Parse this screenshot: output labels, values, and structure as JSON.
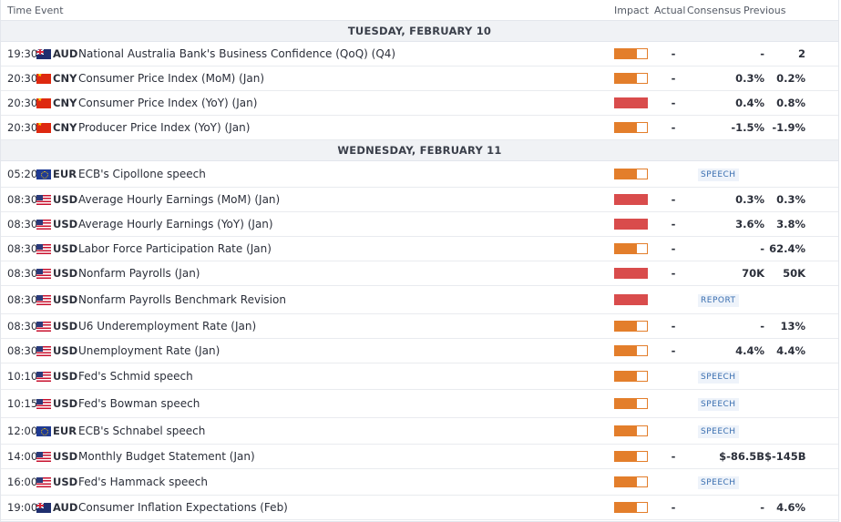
{
  "header": {
    "time": "Time",
    "event": "Event",
    "impact": "Impact",
    "actual": "Actual",
    "consensus": "Consensus",
    "previous": "Previous"
  },
  "colors": {
    "impact_medium": "#e37e2b",
    "impact_high": "#d94c4c",
    "tag_text": "#3a6fb0"
  },
  "days": [
    {
      "label": "TUESDAY, FEBRUARY 10",
      "events": [
        {
          "time": "19:30",
          "flag": "aud",
          "currency": "AUD",
          "event": "National Australia Bank's Business Confidence (QoQ) (Q4)",
          "impact": "medium",
          "actual": "-",
          "consensus": "-",
          "previous": "2",
          "tag": ""
        },
        {
          "time": "20:30",
          "flag": "cny",
          "currency": "CNY",
          "event": "Consumer Price Index (MoM) (Jan)",
          "impact": "medium",
          "actual": "-",
          "consensus": "0.3%",
          "previous": "0.2%",
          "tag": ""
        },
        {
          "time": "20:30",
          "flag": "cny",
          "currency": "CNY",
          "event": "Consumer Price Index (YoY) (Jan)",
          "impact": "high",
          "actual": "-",
          "consensus": "0.4%",
          "previous": "0.8%",
          "tag": ""
        },
        {
          "time": "20:30",
          "flag": "cny",
          "currency": "CNY",
          "event": "Producer Price Index (YoY) (Jan)",
          "impact": "medium",
          "actual": "-",
          "consensus": "-1.5%",
          "previous": "-1.9%",
          "tag": ""
        }
      ]
    },
    {
      "label": "WEDNESDAY, FEBRUARY 11",
      "events": [
        {
          "time": "05:20",
          "flag": "eur",
          "currency": "EUR",
          "event": "ECB's Cipollone speech",
          "impact": "medium",
          "actual": "",
          "consensus": "",
          "previous": "",
          "tag": "SPEECH"
        },
        {
          "time": "08:30",
          "flag": "usd",
          "currency": "USD",
          "event": "Average Hourly Earnings (MoM) (Jan)",
          "impact": "high",
          "actual": "-",
          "consensus": "0.3%",
          "previous": "0.3%",
          "tag": ""
        },
        {
          "time": "08:30",
          "flag": "usd",
          "currency": "USD",
          "event": "Average Hourly Earnings (YoY) (Jan)",
          "impact": "high",
          "actual": "-",
          "consensus": "3.6%",
          "previous": "3.8%",
          "tag": ""
        },
        {
          "time": "08:30",
          "flag": "usd",
          "currency": "USD",
          "event": "Labor Force Participation Rate (Jan)",
          "impact": "medium",
          "actual": "-",
          "consensus": "-",
          "previous": "62.4%",
          "tag": ""
        },
        {
          "time": "08:30",
          "flag": "usd",
          "currency": "USD",
          "event": "Nonfarm Payrolls (Jan)",
          "impact": "high",
          "actual": "-",
          "consensus": "70K",
          "previous": "50K",
          "tag": ""
        },
        {
          "time": "08:30",
          "flag": "usd",
          "currency": "USD",
          "event": "Nonfarm Payrolls Benchmark Revision",
          "impact": "high",
          "actual": "",
          "consensus": "",
          "previous": "",
          "tag": "REPORT"
        },
        {
          "time": "08:30",
          "flag": "usd",
          "currency": "USD",
          "event": "U6 Underemployment Rate (Jan)",
          "impact": "medium",
          "actual": "-",
          "consensus": "-",
          "previous": "13%",
          "tag": ""
        },
        {
          "time": "08:30",
          "flag": "usd",
          "currency": "USD",
          "event": "Unemployment Rate (Jan)",
          "impact": "medium",
          "actual": "-",
          "consensus": "4.4%",
          "previous": "4.4%",
          "tag": ""
        },
        {
          "time": "10:10",
          "flag": "usd",
          "currency": "USD",
          "event": "Fed's Schmid speech",
          "impact": "medium",
          "actual": "",
          "consensus": "",
          "previous": "",
          "tag": "SPEECH"
        },
        {
          "time": "10:15",
          "flag": "usd",
          "currency": "USD",
          "event": "Fed's Bowman speech",
          "impact": "medium",
          "actual": "",
          "consensus": "",
          "previous": "",
          "tag": "SPEECH"
        },
        {
          "time": "12:00",
          "flag": "eur",
          "currency": "EUR",
          "event": "ECB's Schnabel speech",
          "impact": "medium",
          "actual": "",
          "consensus": "",
          "previous": "",
          "tag": "SPEECH"
        },
        {
          "time": "14:00",
          "flag": "usd",
          "currency": "USD",
          "event": "Monthly Budget Statement (Jan)",
          "impact": "medium",
          "actual": "-",
          "consensus": "$-86.5B",
          "previous": "$-145B",
          "tag": ""
        },
        {
          "time": "16:00",
          "flag": "usd",
          "currency": "USD",
          "event": "Fed's Hammack speech",
          "impact": "medium",
          "actual": "",
          "consensus": "",
          "previous": "",
          "tag": "SPEECH"
        },
        {
          "time": "19:00",
          "flag": "aud",
          "currency": "AUD",
          "event": "Consumer Inflation Expectations (Feb)",
          "impact": "medium",
          "actual": "-",
          "consensus": "-",
          "previous": "4.6%",
          "tag": ""
        }
      ]
    }
  ]
}
